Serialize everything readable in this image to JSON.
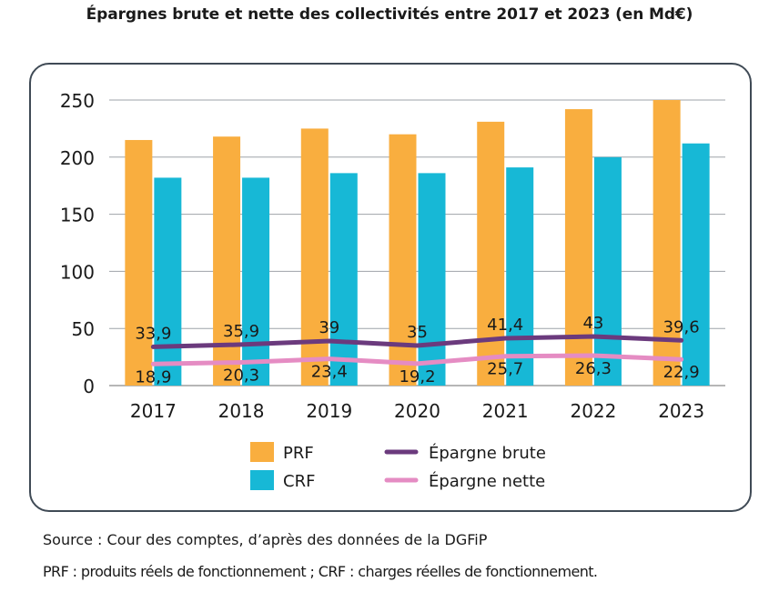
{
  "title": "Épargnes brute et nette des collectivités entre 2017 et 2023 (en Md€)",
  "footer": {
    "source": "Source : Cour des comptes, d’après des données de la DGFiP",
    "note": "PRF : produits réels de fonctionnement ; CRF : charges réelles de fonctionnement."
  },
  "chart_data": {
    "type": "bar",
    "categories": [
      "2017",
      "2018",
      "2019",
      "2020",
      "2021",
      "2022",
      "2023"
    ],
    "ylim": [
      0,
      250
    ],
    "yticks": [
      "0",
      "50",
      "100",
      "150",
      "200",
      "250"
    ],
    "grid": true,
    "legend_position": "bottom",
    "series": [
      {
        "name": "PRF",
        "kind": "bar",
        "color": "#F9AE3F",
        "values": [
          215,
          218,
          225,
          220,
          231,
          242,
          250
        ]
      },
      {
        "name": "CRF",
        "kind": "bar",
        "color": "#17B8D6",
        "values": [
          182,
          182,
          186,
          186,
          191,
          200,
          212
        ]
      },
      {
        "name": "Épargne brute",
        "kind": "line",
        "color": "#6B3A7D",
        "values": [
          33.9,
          35.9,
          39,
          35,
          41.4,
          43,
          39.6
        ],
        "labels": [
          "33,9",
          "35,9",
          "39",
          "35",
          "41,4",
          "43",
          "39,6"
        ]
      },
      {
        "name": "Épargne nette",
        "kind": "line",
        "color": "#E58CC3",
        "values": [
          18.9,
          20.3,
          23.4,
          19.2,
          25.7,
          26.3,
          22.9
        ],
        "labels": [
          "18,9",
          "20,3",
          "23,4",
          "19,2",
          "25,7",
          "26,3",
          "22,9"
        ]
      }
    ]
  }
}
